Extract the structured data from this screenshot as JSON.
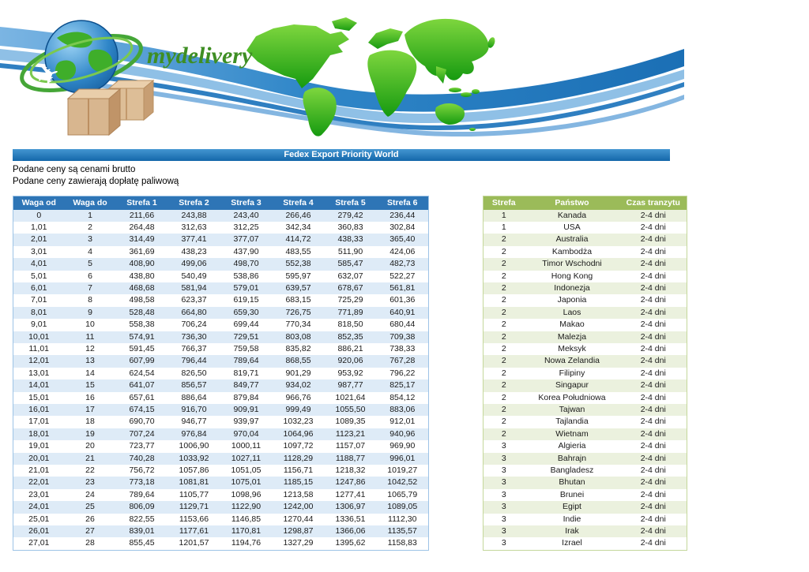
{
  "banner": {
    "logo_text": "mydelivery",
    "title": "Fedex Export Priority World"
  },
  "notes": [
    "Podane ceny są cenami brutto",
    "Podane ceny zawierają dopłatę paliwową"
  ],
  "colors": {
    "title_bar_blue": "#1B78BE",
    "price_header_blue": "#2E75B6",
    "price_band_blue": "#DEEBF7",
    "zone_header_green": "#9BBB59",
    "zone_band_green": "#EBF1DE",
    "logo_green": "#3E8E23"
  },
  "price_table": {
    "headers": [
      "Waga od",
      "Waga do",
      "Strefa 1",
      "Strefa 2",
      "Strefa 3",
      "Strefa 4",
      "Strefa 5",
      "Strefa 6"
    ],
    "rows": [
      [
        "0",
        "1",
        "211,66",
        "243,88",
        "243,40",
        "266,46",
        "279,42",
        "236,44"
      ],
      [
        "1,01",
        "2",
        "264,48",
        "312,63",
        "312,25",
        "342,34",
        "360,83",
        "302,84"
      ],
      [
        "2,01",
        "3",
        "314,49",
        "377,41",
        "377,07",
        "414,72",
        "438,33",
        "365,40"
      ],
      [
        "3,01",
        "4",
        "361,69",
        "438,23",
        "437,90",
        "483,55",
        "511,90",
        "424,06"
      ],
      [
        "4,01",
        "5",
        "408,90",
        "499,06",
        "498,70",
        "552,38",
        "585,47",
        "482,73"
      ],
      [
        "5,01",
        "6",
        "438,80",
        "540,49",
        "538,86",
        "595,97",
        "632,07",
        "522,27"
      ],
      [
        "6,01",
        "7",
        "468,68",
        "581,94",
        "579,01",
        "639,57",
        "678,67",
        "561,81"
      ],
      [
        "7,01",
        "8",
        "498,58",
        "623,37",
        "619,15",
        "683,15",
        "725,29",
        "601,36"
      ],
      [
        "8,01",
        "9",
        "528,48",
        "664,80",
        "659,30",
        "726,75",
        "771,89",
        "640,91"
      ],
      [
        "9,01",
        "10",
        "558,38",
        "706,24",
        "699,44",
        "770,34",
        "818,50",
        "680,44"
      ],
      [
        "10,01",
        "11",
        "574,91",
        "736,30",
        "729,51",
        "803,08",
        "852,35",
        "709,38"
      ],
      [
        "11,01",
        "12",
        "591,45",
        "766,37",
        "759,58",
        "835,82",
        "886,21",
        "738,33"
      ],
      [
        "12,01",
        "13",
        "607,99",
        "796,44",
        "789,64",
        "868,55",
        "920,06",
        "767,28"
      ],
      [
        "13,01",
        "14",
        "624,54",
        "826,50",
        "819,71",
        "901,29",
        "953,92",
        "796,22"
      ],
      [
        "14,01",
        "15",
        "641,07",
        "856,57",
        "849,77",
        "934,02",
        "987,77",
        "825,17"
      ],
      [
        "15,01",
        "16",
        "657,61",
        "886,64",
        "879,84",
        "966,76",
        "1021,64",
        "854,12"
      ],
      [
        "16,01",
        "17",
        "674,15",
        "916,70",
        "909,91",
        "999,49",
        "1055,50",
        "883,06"
      ],
      [
        "17,01",
        "18",
        "690,70",
        "946,77",
        "939,97",
        "1032,23",
        "1089,35",
        "912,01"
      ],
      [
        "18,01",
        "19",
        "707,24",
        "976,84",
        "970,04",
        "1064,96",
        "1123,21",
        "940,96"
      ],
      [
        "19,01",
        "20",
        "723,77",
        "1006,90",
        "1000,11",
        "1097,72",
        "1157,07",
        "969,90"
      ],
      [
        "20,01",
        "21",
        "740,28",
        "1033,92",
        "1027,11",
        "1128,29",
        "1188,77",
        "996,01"
      ],
      [
        "21,01",
        "22",
        "756,72",
        "1057,86",
        "1051,05",
        "1156,71",
        "1218,32",
        "1019,27"
      ],
      [
        "22,01",
        "23",
        "773,18",
        "1081,81",
        "1075,01",
        "1185,15",
        "1247,86",
        "1042,52"
      ],
      [
        "23,01",
        "24",
        "789,64",
        "1105,77",
        "1098,96",
        "1213,58",
        "1277,41",
        "1065,79"
      ],
      [
        "24,01",
        "25",
        "806,09",
        "1129,71",
        "1122,90",
        "1242,00",
        "1306,97",
        "1089,05"
      ],
      [
        "25,01",
        "26",
        "822,55",
        "1153,66",
        "1146,85",
        "1270,44",
        "1336,51",
        "1112,30"
      ],
      [
        "26,01",
        "27",
        "839,01",
        "1177,61",
        "1170,81",
        "1298,87",
        "1366,06",
        "1135,57"
      ],
      [
        "27,01",
        "28",
        "855,45",
        "1201,57",
        "1194,76",
        "1327,29",
        "1395,62",
        "1158,83"
      ]
    ]
  },
  "zone_table": {
    "headers": [
      "Strefa",
      "Państwo",
      "Czas tranzytu"
    ],
    "rows": [
      [
        "1",
        "Kanada",
        "2-4 dni"
      ],
      [
        "1",
        "USA",
        "2-4 dni"
      ],
      [
        "2",
        "Australia",
        "2-4 dni"
      ],
      [
        "2",
        "Kambodża",
        "2-4 dni"
      ],
      [
        "2",
        "Timor Wschodni",
        "2-4 dni"
      ],
      [
        "2",
        "Hong Kong",
        "2-4 dni"
      ],
      [
        "2",
        "Indonezja",
        "2-4 dni"
      ],
      [
        "2",
        "Japonia",
        "2-4 dni"
      ],
      [
        "2",
        "Laos",
        "2-4 dni"
      ],
      [
        "2",
        "Makao",
        "2-4 dni"
      ],
      [
        "2",
        "Malezja",
        "2-4 dni"
      ],
      [
        "2",
        "Meksyk",
        "2-4 dni"
      ],
      [
        "2",
        "Nowa Zelandia",
        "2-4 dni"
      ],
      [
        "2",
        "Filipiny",
        "2-4 dni"
      ],
      [
        "2",
        "Singapur",
        "2-4 dni"
      ],
      [
        "2",
        "Korea Południowa",
        "2-4 dni"
      ],
      [
        "2",
        "Tajwan",
        "2-4 dni"
      ],
      [
        "2",
        "Tajlandia",
        "2-4 dni"
      ],
      [
        "2",
        "Wietnam",
        "2-4 dni"
      ],
      [
        "3",
        "Algieria",
        "2-4 dni"
      ],
      [
        "3",
        "Bahrajn",
        "2-4 dni"
      ],
      [
        "3",
        "Bangladesz",
        "2-4 dni"
      ],
      [
        "3",
        "Bhutan",
        "2-4 dni"
      ],
      [
        "3",
        "Brunei",
        "2-4 dni"
      ],
      [
        "3",
        "Egipt",
        "2-4 dni"
      ],
      [
        "3",
        "Indie",
        "2-4 dni"
      ],
      [
        "3",
        "Irak",
        "2-4 dni"
      ],
      [
        "3",
        "Izrael",
        "2-4 dni"
      ]
    ]
  }
}
